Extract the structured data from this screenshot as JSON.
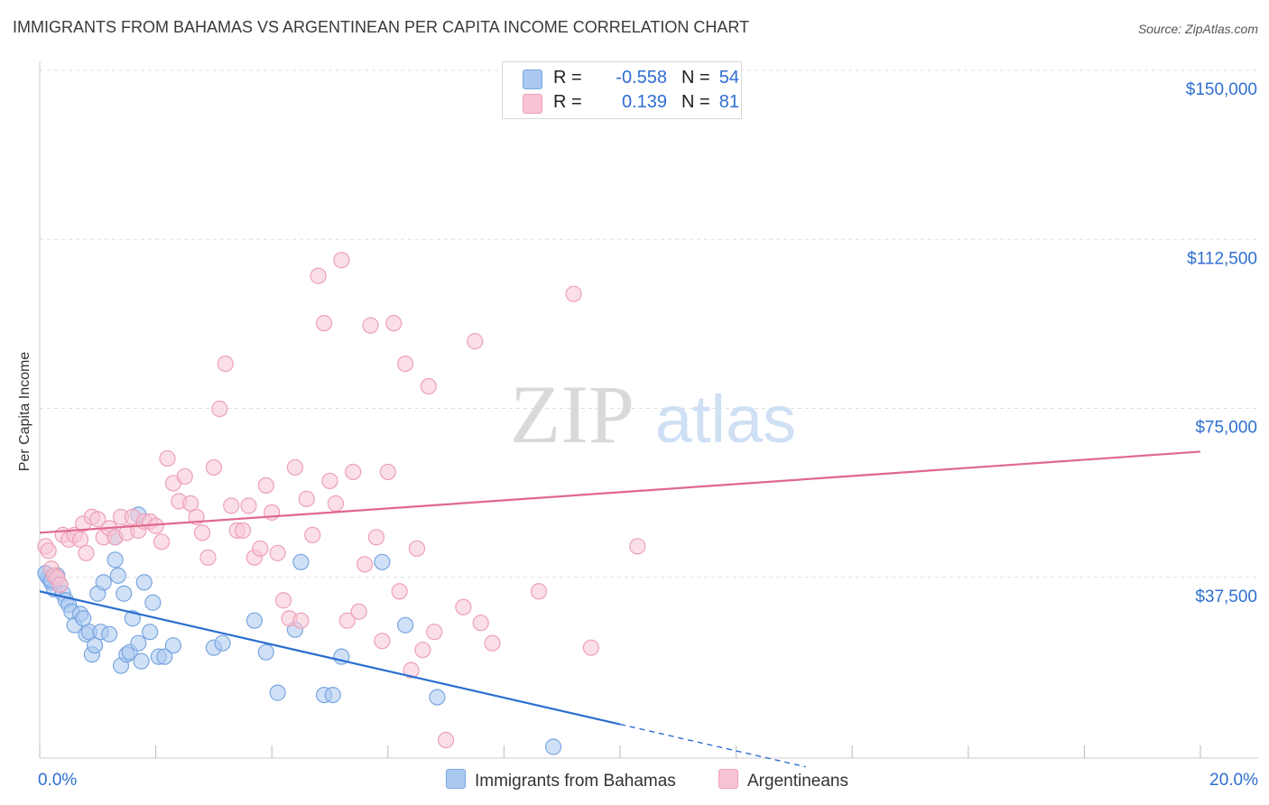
{
  "title": "IMMIGRANTS FROM BAHAMAS VS ARGENTINEAN PER CAPITA INCOME CORRELATION CHART",
  "source": "Source: ZipAtlas.com",
  "watermark": {
    "zip": "ZIP",
    "atlas": "atlas"
  },
  "legend": {
    "rows": [
      {
        "r_label": "R =",
        "r_value": "-0.558",
        "n_label": "N =",
        "n_value": "54",
        "color": "#aac8f0",
        "border": "#7aa6e0"
      },
      {
        "r_label": "R =",
        "r_value": "0.139",
        "n_label": "N =",
        "n_value": "81",
        "color": "#f8c4d4",
        "border": "#eda0b8"
      }
    ]
  },
  "bottom_legend": [
    {
      "label": "Immigrants from Bahamas",
      "color": "#aac8f0",
      "border": "#7aa6e0"
    },
    {
      "label": "Argentineans",
      "color": "#f8c4d4",
      "border": "#eda0b8"
    }
  ],
  "chart_data": {
    "type": "scatter",
    "title": "IMMIGRANTS FROM BAHAMAS VS ARGENTINEAN PER CAPITA INCOME CORRELATION CHART",
    "xlabel": "",
    "ylabel": "Per Capita Income",
    "xlim": [
      0,
      20
    ],
    "ylim": [
      0,
      150000
    ],
    "x_tick_labels": [
      {
        "value": 0,
        "label": "0.0%"
      },
      {
        "value": 20,
        "label": "20.0%"
      }
    ],
    "y_tick_labels": [
      {
        "value": 37500,
        "label": "$37,500"
      },
      {
        "value": 75000,
        "label": "$75,000"
      },
      {
        "value": 112500,
        "label": "$112,500"
      },
      {
        "value": 150000,
        "label": "$150,000"
      }
    ],
    "grid": true,
    "legend_position": "top-center",
    "series": [
      {
        "name": "Immigrants from Bahamas",
        "color": "#7aa6e0",
        "fill": "#aac8f0",
        "trend": {
          "x0": 0,
          "y0": 38000,
          "x1": 10,
          "y1": 8500,
          "dash_to_x": 13.2,
          "line_color": "#2b6fd0"
        },
        "points": [
          [
            0.1,
            42000
          ],
          [
            0.15,
            41000
          ],
          [
            0.2,
            40000
          ],
          [
            0.25,
            38500
          ],
          [
            0.3,
            41500
          ],
          [
            0.35,
            39500
          ],
          [
            0.4,
            37500
          ],
          [
            0.45,
            36000
          ],
          [
            0.5,
            35000
          ],
          [
            0.55,
            33500
          ],
          [
            0.6,
            30500
          ],
          [
            0.7,
            33000
          ],
          [
            0.75,
            32000
          ],
          [
            0.8,
            28500
          ],
          [
            0.85,
            29000
          ],
          [
            0.9,
            24000
          ],
          [
            0.95,
            26000
          ],
          [
            1.0,
            37500
          ],
          [
            1.05,
            29000
          ],
          [
            1.1,
            40000
          ],
          [
            1.2,
            28500
          ],
          [
            1.3,
            45000
          ],
          [
            1.35,
            41500
          ],
          [
            1.4,
            21500
          ],
          [
            1.45,
            37500
          ],
          [
            1.5,
            24000
          ],
          [
            1.55,
            24500
          ],
          [
            1.6,
            32000
          ],
          [
            1.7,
            26500
          ],
          [
            1.75,
            22500
          ],
          [
            1.8,
            40000
          ],
          [
            1.9,
            29000
          ],
          [
            1.95,
            35500
          ],
          [
            2.05,
            23500
          ],
          [
            2.15,
            23500
          ],
          [
            1.3,
            50000
          ],
          [
            1.7,
            55000
          ],
          [
            2.3,
            26000
          ],
          [
            3.0,
            25500
          ],
          [
            3.15,
            26500
          ],
          [
            3.7,
            31500
          ],
          [
            3.9,
            24500
          ],
          [
            4.1,
            15500
          ],
          [
            4.4,
            29500
          ],
          [
            4.5,
            44500
          ],
          [
            4.9,
            15000
          ],
          [
            5.05,
            15000
          ],
          [
            5.2,
            23500
          ],
          [
            5.9,
            44500
          ],
          [
            6.3,
            30500
          ],
          [
            6.85,
            14500
          ],
          [
            0.1,
            42000
          ],
          [
            0.2,
            40500
          ],
          [
            8.85,
            3500
          ]
        ]
      },
      {
        "name": "Argentineans",
        "color": "#eda0b8",
        "fill": "#f8c4d4",
        "trend": {
          "x0": 0,
          "y0": 51000,
          "x1": 20,
          "y1": 69000,
          "line_color": "#e06890"
        },
        "points": [
          [
            0.1,
            48000
          ],
          [
            0.15,
            47000
          ],
          [
            0.2,
            43000
          ],
          [
            0.25,
            41500
          ],
          [
            0.3,
            41000
          ],
          [
            0.35,
            39500
          ],
          [
            0.4,
            50500
          ],
          [
            0.5,
            49500
          ],
          [
            0.6,
            50500
          ],
          [
            0.7,
            49500
          ],
          [
            0.75,
            53000
          ],
          [
            0.8,
            46500
          ],
          [
            0.9,
            54500
          ],
          [
            1.0,
            54000
          ],
          [
            1.1,
            50000
          ],
          [
            1.2,
            52000
          ],
          [
            1.3,
            50000
          ],
          [
            1.4,
            54500
          ],
          [
            1.5,
            51000
          ],
          [
            1.6,
            54500
          ],
          [
            1.7,
            51500
          ],
          [
            1.8,
            53500
          ],
          [
            1.9,
            53500
          ],
          [
            2.0,
            52500
          ],
          [
            2.1,
            49000
          ],
          [
            2.2,
            67500
          ],
          [
            2.3,
            62000
          ],
          [
            2.4,
            58000
          ],
          [
            2.5,
            63500
          ],
          [
            2.6,
            57500
          ],
          [
            2.7,
            54500
          ],
          [
            2.8,
            51000
          ],
          [
            2.9,
            45500
          ],
          [
            3.0,
            65500
          ],
          [
            3.1,
            78500
          ],
          [
            3.2,
            88500
          ],
          [
            3.3,
            57000
          ],
          [
            3.4,
            51500
          ],
          [
            3.5,
            51500
          ],
          [
            3.6,
            57000
          ],
          [
            3.7,
            45500
          ],
          [
            3.8,
            47500
          ],
          [
            3.9,
            61500
          ],
          [
            4.0,
            55500
          ],
          [
            4.1,
            46500
          ],
          [
            4.2,
            36000
          ],
          [
            4.3,
            32000
          ],
          [
            4.4,
            65500
          ],
          [
            4.5,
            31500
          ],
          [
            4.6,
            58500
          ],
          [
            4.7,
            50500
          ],
          [
            4.8,
            108000
          ],
          [
            4.9,
            97500
          ],
          [
            5.0,
            62500
          ],
          [
            5.1,
            57500
          ],
          [
            5.2,
            111500
          ],
          [
            5.3,
            31500
          ],
          [
            5.4,
            64500
          ],
          [
            5.5,
            33500
          ],
          [
            5.6,
            44000
          ],
          [
            5.7,
            97000
          ],
          [
            5.8,
            50000
          ],
          [
            5.9,
            27000
          ],
          [
            6.0,
            64500
          ],
          [
            6.1,
            97500
          ],
          [
            6.2,
            38000
          ],
          [
            6.3,
            88500
          ],
          [
            6.4,
            20500
          ],
          [
            6.5,
            47500
          ],
          [
            6.6,
            25000
          ],
          [
            6.7,
            83500
          ],
          [
            6.8,
            29000
          ],
          [
            7.0,
            5000
          ],
          [
            7.3,
            34500
          ],
          [
            7.5,
            93500
          ],
          [
            7.6,
            31000
          ],
          [
            7.8,
            26500
          ],
          [
            8.6,
            38000
          ],
          [
            9.2,
            104000
          ],
          [
            9.5,
            25500
          ],
          [
            10.3,
            48000
          ]
        ]
      }
    ]
  }
}
